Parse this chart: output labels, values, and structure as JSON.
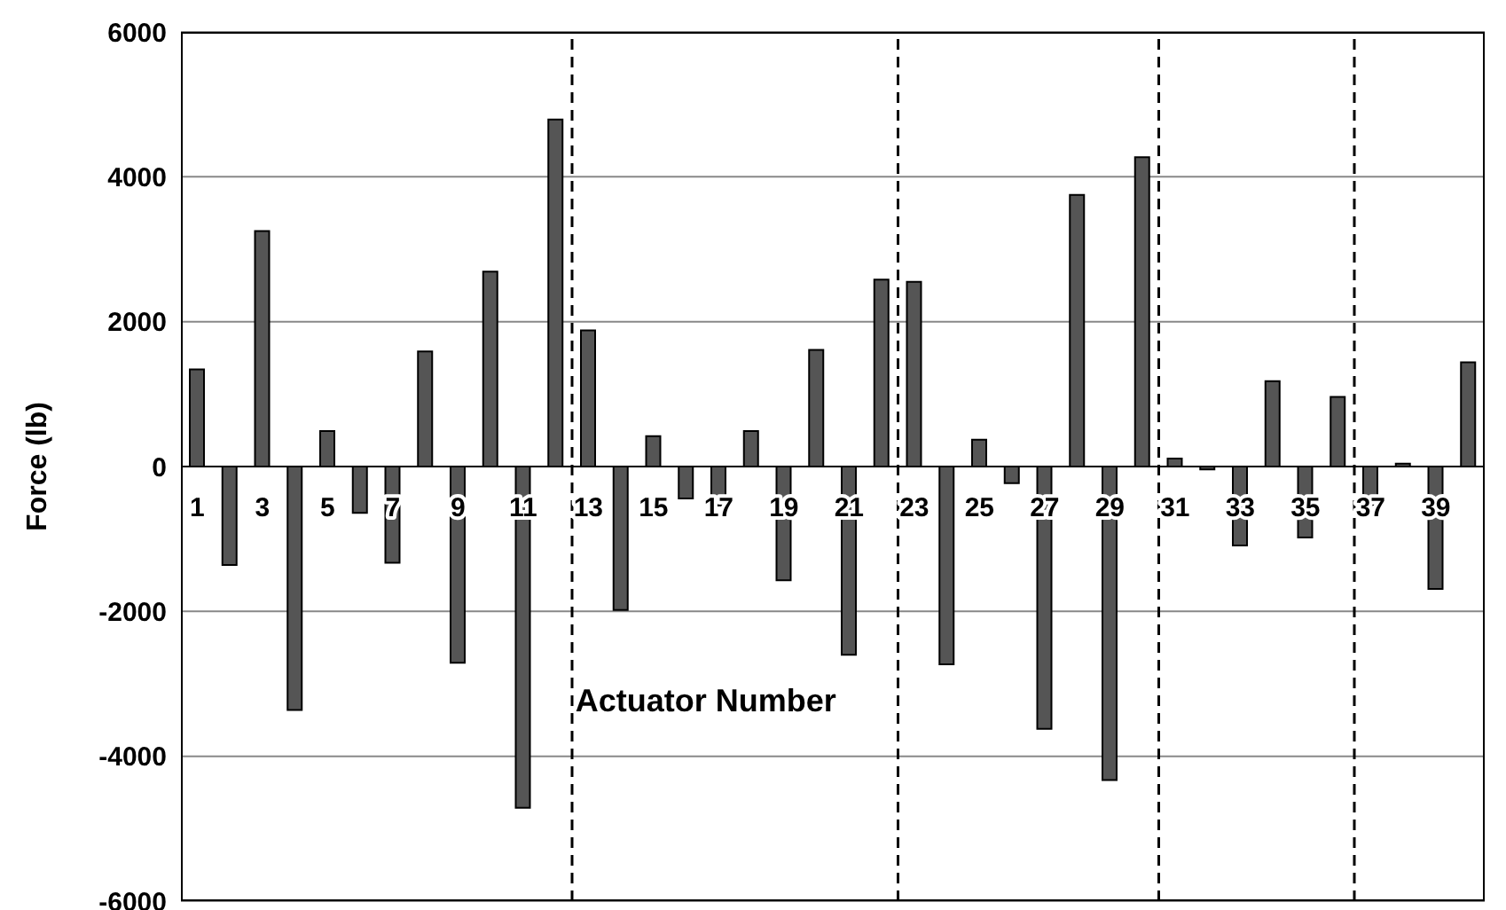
{
  "chart_data": {
    "type": "bar",
    "xlabel": "Actuator Number",
    "ylabel": "Force (lb)",
    "x": [
      1,
      2,
      3,
      4,
      5,
      6,
      7,
      8,
      9,
      10,
      11,
      12,
      13,
      14,
      15,
      16,
      17,
      18,
      19,
      20,
      21,
      22,
      23,
      24,
      25,
      26,
      27,
      28,
      29,
      30,
      31,
      32,
      33,
      34,
      35,
      36,
      37,
      38,
      39,
      40
    ],
    "values": [
      1340,
      -1360,
      3250,
      -3360,
      490,
      -640,
      -1330,
      1590,
      -2710,
      2690,
      -4710,
      4790,
      1880,
      -1980,
      420,
      -440,
      -540,
      490,
      -1570,
      1610,
      -2600,
      2580,
      2550,
      -2730,
      370,
      -230,
      -3620,
      3750,
      -4330,
      4270,
      110,
      -40,
      -1090,
      1180,
      -980,
      960,
      -530,
      40,
      -1690,
      1440
    ],
    "color": "#555555",
    "xlim": [
      0.5,
      40.5
    ],
    "xticks": [
      1,
      3,
      5,
      7,
      9,
      11,
      13,
      15,
      17,
      19,
      21,
      23,
      25,
      27,
      29,
      31,
      33,
      35,
      37,
      39
    ],
    "ylim": [
      -6000,
      6000
    ],
    "yticks": [
      -6000,
      -4000,
      -2000,
      0,
      2000,
      4000,
      6000
    ],
    "grid": "y",
    "ref_lines": [
      {
        "axis": "x",
        "value": 12.5,
        "line_style": "dashed",
        "color": "#000000"
      },
      {
        "axis": "x",
        "value": 22.5,
        "line_style": "dashed",
        "color": "#000000"
      },
      {
        "axis": "x",
        "value": 30.5,
        "line_style": "dashed",
        "color": "#000000"
      },
      {
        "axis": "x",
        "value": 36.5,
        "line_style": "dashed",
        "color": "#000000"
      }
    ]
  }
}
